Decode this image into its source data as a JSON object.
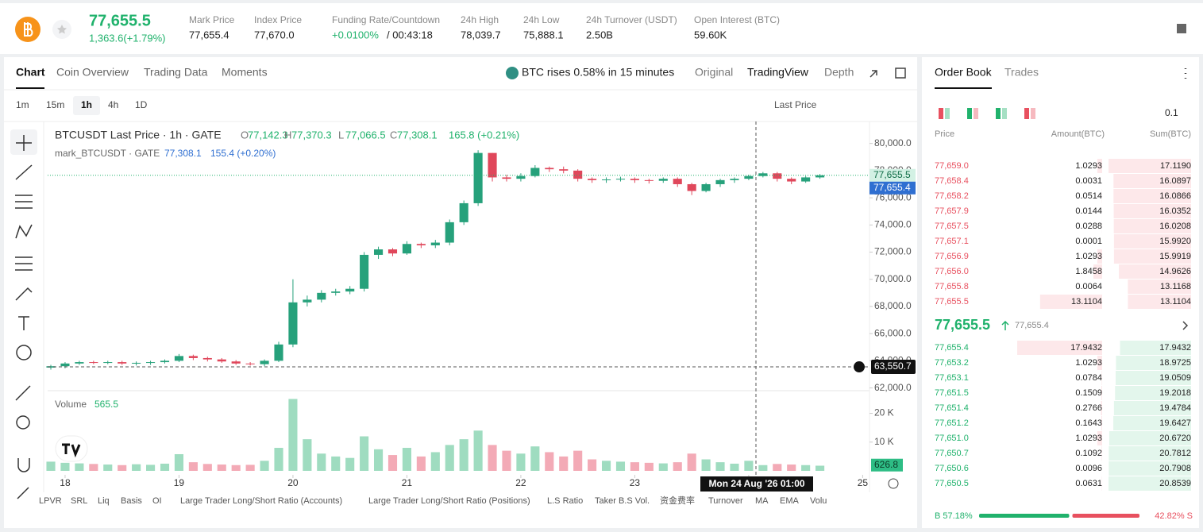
{
  "header": {
    "price": "77,655.5",
    "change": "1,363.6(+1.79%)",
    "stats": [
      {
        "label": "Mark Price",
        "value": "77,655.4"
      },
      {
        "label": "Index Price",
        "value": "77,670.0"
      },
      {
        "label": "Funding Rate/Countdown",
        "value": "+0.0100%",
        "countdown": "/ 00:43:18"
      },
      {
        "label": "24h High",
        "value": "78,039.7"
      },
      {
        "label": "24h Low",
        "value": "75,888.1"
      },
      {
        "label": "24h Turnover (USDT)",
        "value": "2.50B"
      },
      {
        "label": "Open Interest (BTC)",
        "value": "59.60K"
      }
    ]
  },
  "tabs": [
    "Chart",
    "Coin Overview",
    "Trading Data",
    "Moments"
  ],
  "ai_note": "BTC rises 0.58% in 15 minutes",
  "views": [
    "Original",
    "TradingView",
    "Depth"
  ],
  "intervals": [
    "1m",
    "15m",
    "1h",
    "4h",
    "1D"
  ],
  "price_source": "Last Price",
  "legend": {
    "title": "BTCUSDT Last Price · 1h · GATE",
    "ohlc": [
      {
        "key": "O",
        "value": "77,142.3"
      },
      {
        "key": "H",
        "value": "77,370.3"
      },
      {
        "key": "L",
        "value": "77,066.5"
      },
      {
        "key": "C",
        "value": "77,308.1"
      }
    ],
    "change": "165.8 (+0.21%)",
    "mark_title": "mark_BTCUSDT · GATE",
    "mark_value": "77,308.1",
    "mark_change": "155.4 (+0.20%)"
  },
  "chart": {
    "type": "candlestick",
    "time": [
      17.875,
      18,
      18.125,
      18.25,
      18.375,
      18.5,
      18.625,
      18.75,
      18.875,
      19,
      19.125,
      19.25,
      19.375,
      19.5,
      19.625,
      19.75,
      19.875,
      20,
      20.125,
      20.25,
      20.375,
      20.5,
      20.625,
      20.75,
      20.875,
      21,
      21.125,
      21.25,
      21.375,
      21.5,
      21.625,
      21.75,
      21.875,
      22,
      22.125,
      22.25,
      22.375,
      22.5,
      22.625,
      22.75,
      22.875,
      23,
      23.125,
      23.25,
      23.375,
      23.5,
      23.625,
      23.75,
      23.875,
      24,
      24.125,
      24.25,
      24.375,
      24.5,
      24.625
    ],
    "open": [
      63500,
      63600,
      63800,
      63900,
      63850,
      63900,
      63800,
      63850,
      63900,
      64000,
      64350,
      64200,
      64100,
      63950,
      63800,
      63750,
      64000,
      65200,
      68300,
      68500,
      69000,
      69100,
      69300,
      71800,
      72200,
      71900,
      72600,
      72500,
      72700,
      74200,
      75600,
      79300,
      77500,
      77400,
      77600,
      78200,
      78100,
      78000,
      77400,
      77300,
      77350,
      77400,
      77300,
      77250,
      77400,
      77000,
      76500,
      77000,
      77300,
      77400,
      77600,
      77800,
      77400,
      77200,
      77500
    ],
    "high": [
      63700,
      63900,
      64000,
      64000,
      64000,
      64000,
      63950,
      64000,
      64100,
      64500,
      64450,
      64300,
      64200,
      64050,
      63900,
      64100,
      65400,
      70000,
      68800,
      69200,
      69300,
      69500,
      72000,
      72400,
      72300,
      72800,
      72700,
      72900,
      74400,
      75800,
      79500,
      79300,
      77700,
      77800,
      78400,
      78300,
      78300,
      78100,
      77500,
      77500,
      77550,
      77500,
      77400,
      77500,
      77500,
      77100,
      77100,
      77400,
      77500,
      77700,
      77900,
      77900,
      77500,
      77600,
      77750
    ],
    "low": [
      63350,
      63450,
      63700,
      63750,
      63750,
      63700,
      63650,
      63700,
      63800,
      63900,
      64050,
      63950,
      63850,
      63700,
      63650,
      63600,
      63900,
      65000,
      68000,
      68300,
      68800,
      68900,
      69100,
      71500,
      71700,
      71800,
      72300,
      72300,
      72500,
      74000,
      75400,
      77200,
      77200,
      77200,
      77500,
      77900,
      77800,
      77200,
      77100,
      77100,
      77200,
      77100,
      77050,
      77100,
      76800,
      76200,
      76400,
      76800,
      77100,
      77300,
      77500,
      77200,
      77000,
      77100,
      77400
    ],
    "close": [
      63600,
      63800,
      63900,
      63850,
      63900,
      63800,
      63850,
      63900,
      64000,
      64350,
      64200,
      64100,
      63950,
      63800,
      63750,
      64000,
      65200,
      68300,
      68500,
      69000,
      69100,
      69300,
      71800,
      72200,
      71900,
      72600,
      72500,
      72700,
      74200,
      75600,
      79300,
      77500,
      77400,
      77600,
      78200,
      78100,
      78000,
      77400,
      77300,
      77350,
      77400,
      77300,
      77250,
      77400,
      77000,
      76500,
      77000,
      77300,
      77400,
      77600,
      77800,
      77400,
      77200,
      77500,
      77655.5
    ],
    "volume": [
      3200,
      2800,
      2600,
      2400,
      2200,
      2000,
      2300,
      2100,
      2500,
      5800,
      3000,
      2400,
      2200,
      2000,
      2100,
      3500,
      8000,
      25000,
      11000,
      6000,
      5000,
      4500,
      12000,
      7500,
      5500,
      8000,
      5000,
      6500,
      9000,
      11000,
      14000,
      9000,
      7000,
      6000,
      8500,
      6500,
      5000,
      7000,
      4000,
      3500,
      3200,
      3000,
      2800,
      2600,
      3000,
      6000,
      4000,
      3000,
      2500,
      3500,
      2000,
      2400,
      2200,
      2000,
      1800
    ],
    "up_color": "#26a17b",
    "down_color": "#e0475b",
    "up_volume_color": "#9fdcc0",
    "down_volume_color": "#f3aab6",
    "xlim": [
      17.847,
      25.06
    ],
    "xticks": [
      18,
      19,
      20,
      21,
      22,
      23,
      24,
      25
    ],
    "ylim": [
      61800,
      81500
    ],
    "yticks": [
      {
        "value": 62000,
        "label": "62,000.0"
      },
      {
        "value": 64000,
        "label": "64,000.0"
      },
      {
        "value": 66000,
        "label": "66,000.0"
      },
      {
        "value": 68000,
        "label": "68,000.0"
      },
      {
        "value": 70000,
        "label": "70,000.0"
      },
      {
        "value": 72000,
        "label": "72,000.0"
      },
      {
        "value": 74000,
        "label": "74,000.0"
      },
      {
        "value": 76000,
        "label": "76,000.0"
      },
      {
        "value": 78000,
        "label": "78,000.0"
      },
      {
        "value": 80000,
        "label": "80,000.0"
      }
    ],
    "volume_ylim": [
      0,
      26500
    ],
    "volume_yticks": [
      {
        "value": 10000,
        "label": "10 K"
      },
      {
        "value": 20000,
        "label": "20 K"
      }
    ],
    "volume_title": "Volume",
    "volume_value": "565.5",
    "last_price": {
      "value": 77655.5,
      "label": "77,655.5"
    },
    "mark_price": {
      "value": 77655.4,
      "label": "77,655.4"
    },
    "crosshair_price": {
      "value": 63550.7,
      "label": "63,550.7"
    },
    "crosshair_time": "Mon 24 Aug '26 01:00",
    "last_volume": {
      "value": 626.8,
      "label": "626.8"
    }
  },
  "indicators": [
    "LPVR",
    "SRL",
    "Liq",
    "Basis",
    "OI",
    "Large Trader Long/Short Ratio (Accounts)",
    "Large Trader Long/Short Ratio (Positions)",
    "L.S Ratio",
    "Taker B.S Vol.",
    "资金费率",
    "Turnover",
    "MA",
    "EMA",
    "Volu"
  ],
  "order_book": {
    "tabs": [
      "Order Book",
      "Trades"
    ],
    "precision": "0.1",
    "columns": [
      "Price",
      "Amount(BTC)",
      "Sum(BTC)"
    ],
    "asks": {
      "prices": [
        "77,659.0",
        "77,658.4",
        "77,658.2",
        "77,657.9",
        "77,657.5",
        "77,657.1",
        "77,656.9",
        "77,656.0",
        "77,655.8",
        "77,655.5"
      ],
      "amounts": [
        1.0293,
        0.0031,
        0.0514,
        0.0144,
        0.0288,
        0.0001,
        1.0293,
        1.8458,
        0.0064,
        13.1104
      ],
      "sums": [
        17.119,
        16.0897,
        16.0866,
        16.0352,
        16.0208,
        15.992,
        15.9919,
        14.9626,
        13.1168,
        13.1104
      ],
      "sum_labels": [
        "17.1190",
        "16.0897",
        "16.0866",
        "16.0352",
        "16.0208",
        "15.9920",
        "15.9919",
        "14.9626",
        "13.1168",
        "13.1104"
      ]
    },
    "mid_price": "77,655.5",
    "mid_mark": "77,655.4",
    "bids": {
      "prices": [
        "77,655.4",
        "77,653.2",
        "77,653.1",
        "77,651.5",
        "77,651.4",
        "77,651.2",
        "77,651.0",
        "77,650.7",
        "77,650.6",
        "77,650.5"
      ],
      "amounts": [
        17.9432,
        1.0293,
        0.0784,
        0.1509,
        0.2766,
        0.1643,
        1.0293,
        0.1092,
        0.0096,
        0.0631
      ],
      "sums": [
        17.9432,
        18.9725,
        19.0509,
        19.2018,
        19.4784,
        19.6427,
        20.672,
        20.7812,
        20.7908,
        20.8539
      ],
      "sum_labels": [
        "17.9432",
        "18.9725",
        "19.0509",
        "19.2018",
        "19.4784",
        "19.6427",
        "20.6720",
        "20.7812",
        "20.7908",
        "20.8539"
      ]
    },
    "buy_ratio": {
      "value": 57.18,
      "label": "B 57.18%"
    },
    "sell_ratio": {
      "value": 42.82,
      "label": "42.82% S"
    }
  }
}
